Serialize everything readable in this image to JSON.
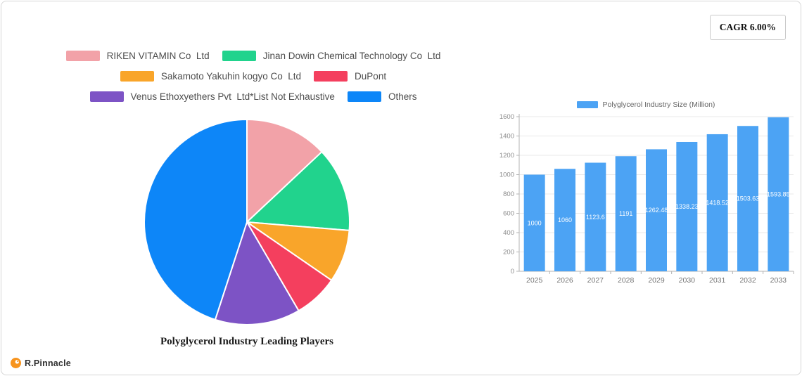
{
  "header": {
    "cagr_label": "CAGR 6.00%"
  },
  "footer": {
    "brand": "R.Pinnacle"
  },
  "chart_data": [
    {
      "type": "pie",
      "title": "Polyglycerol Industry Leading Players",
      "labels": [
        "RIKEN VITAMIN Co  Ltd",
        "Jinan Dowin Chemical Technology Co  Ltd",
        "Sakamoto Yakuhin kogyo Co  Ltd",
        "DuPont",
        "Venus Ethoxyethers Pvt  Ltd*List Not Exhaustive",
        "Others"
      ],
      "values": [
        13,
        13.3,
        8.3,
        7,
        13.4,
        45
      ],
      "colors": [
        "#f2a2a8",
        "#21d38d",
        "#f9a52a",
        "#f43f5e",
        "#7d53c5",
        "#0d86f8"
      ],
      "legend_position": "top"
    },
    {
      "type": "bar",
      "legend": "Polyglycerol Industry Size (Million)",
      "categories": [
        "2025",
        "2026",
        "2027",
        "2028",
        "2029",
        "2030",
        "2031",
        "2032",
        "2033"
      ],
      "values": [
        1000,
        1060,
        1123.6,
        1191.02,
        1262.48,
        1338.23,
        1418.52,
        1503.63,
        1593.85
      ],
      "labels": [
        "1000",
        "1060",
        "1123.6",
        "1191",
        "1262.48",
        "1338.23",
        "1418.52",
        "1503.63",
        "1593.85"
      ],
      "bar_color": "#4ca3f4",
      "ylim": [
        0,
        1600
      ],
      "ytick_step": 200,
      "grid": true
    }
  ]
}
